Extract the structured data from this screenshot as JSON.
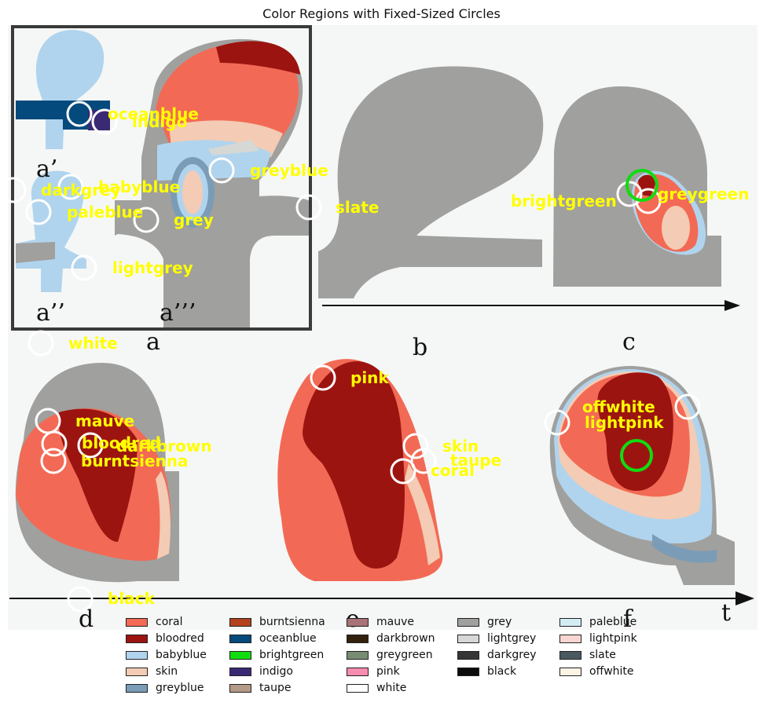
{
  "title": "Color Regions with Fixed-Sized Circles",
  "panel_letters": {
    "a_prime": "a’",
    "a_double": "a’’",
    "a_triple": "a’’’",
    "a": "a",
    "b": "b",
    "c": "c",
    "d": "d",
    "e": "e",
    "f": "f",
    "t": "t"
  },
  "labels": {
    "oceanblue": "oceanblue",
    "indigo": "indigo",
    "greyblue": "greyblue",
    "darkgrey": "darkgrey",
    "babyblue": "babyblue",
    "paleblue": "paleblue",
    "grey": "grey",
    "slate": "slate",
    "lightgrey": "lightgrey",
    "white": "white",
    "brightgreen": "brightgreen",
    "greygreen": "greygreen",
    "mauve": "mauve",
    "bloodred": "bloodred",
    "darkbrown": "darkbrown",
    "burntsienna": "burntsienna",
    "pink": "pink",
    "skin": "skin",
    "taupe": "taupe",
    "coral": "coral",
    "offwhite": "offwhite",
    "lightpink": "lightpink",
    "black": "black"
  },
  "legend": [
    {
      "name": "coral",
      "color": "#f26a55"
    },
    {
      "name": "burntsienna",
      "color": "#b4421c"
    },
    {
      "name": "mauve",
      "color": "#a87276"
    },
    {
      "name": "grey",
      "color": "#a0a09e"
    },
    {
      "name": "paleblue",
      "color": "#d2ecf4"
    },
    {
      "name": "bloodred",
      "color": "#9c1410"
    },
    {
      "name": "oceanblue",
      "color": "#044a7c"
    },
    {
      "name": "darkbrown",
      "color": "#33210e"
    },
    {
      "name": "lightgrey",
      "color": "#d6d8d6"
    },
    {
      "name": "lightpink",
      "color": "#fad6d2"
    },
    {
      "name": "babyblue",
      "color": "#b0d4ee"
    },
    {
      "name": "brightgreen",
      "color": "#10dc10"
    },
    {
      "name": "greygreen",
      "color": "#788c74"
    },
    {
      "name": "darkgrey",
      "color": "#363636"
    },
    {
      "name": "slate",
      "color": "#4a5860"
    },
    {
      "name": "skin",
      "color": "#f4cbb4"
    },
    {
      "name": "indigo",
      "color": "#3a2a74"
    },
    {
      "name": "pink",
      "color": "#f88cb0"
    },
    {
      "name": "black",
      "color": "#0c0c0c"
    },
    {
      "name": "offwhite",
      "color": "#fdf4e4"
    },
    {
      "name": "greyblue",
      "color": "#7a9cb6"
    },
    {
      "name": "taupe",
      "color": "#b49a88"
    },
    {
      "name": "white",
      "color": "#ffffff"
    }
  ]
}
